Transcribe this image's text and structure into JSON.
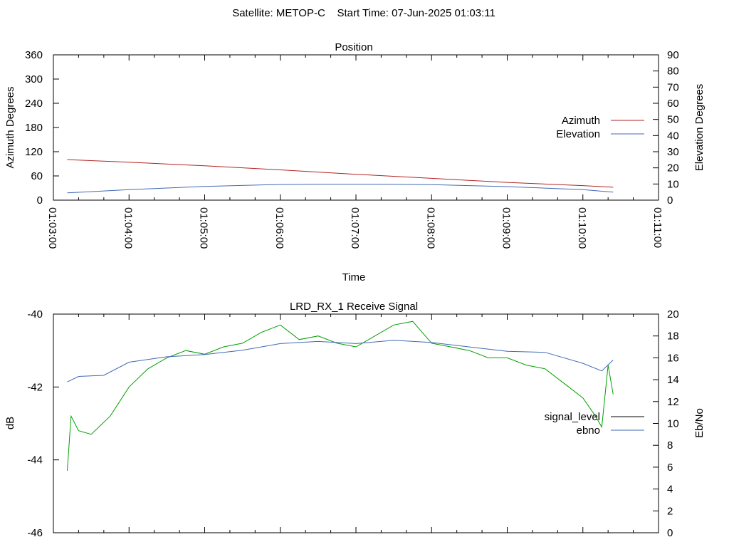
{
  "title": "Satellite: METOP-C    Start Time: 07-Jun-2025 01:03:11",
  "chart_data": [
    {
      "type": "line",
      "title": "Position",
      "xlabel": "Time",
      "ylabel": "Azimuth Degrees",
      "y2label": "Elevation Degrees",
      "ylim": [
        0,
        360
      ],
      "y2lim": [
        0,
        90
      ],
      "yticks": [
        "0",
        "60",
        "120",
        "180",
        "240",
        "300",
        "360"
      ],
      "y2ticks": [
        "0",
        "10",
        "20",
        "30",
        "40",
        "50",
        "60",
        "70",
        "80",
        "90"
      ],
      "xticks": [
        "01:03:00",
        "01:04:00",
        "01:05:00",
        "01:06:00",
        "01:07:00",
        "01:08:00",
        "01:09:00",
        "01:10:00",
        "01:11:00"
      ],
      "legend_position": "right",
      "series": [
        {
          "name": "Azimuth",
          "axis": "y",
          "color": "#b22222",
          "x": [
            "01:03:11",
            "01:04:00",
            "01:05:00",
            "01:06:00",
            "01:07:00",
            "01:08:00",
            "01:09:00",
            "01:10:00",
            "01:10:24"
          ],
          "values": [
            100.5,
            94,
            85,
            75,
            64,
            54,
            44,
            36,
            32
          ]
        },
        {
          "name": "Elevation",
          "axis": "y2",
          "color": "#4169b4",
          "x": [
            "01:03:11",
            "01:04:00",
            "01:05:00",
            "01:06:00",
            "01:06:30",
            "01:07:00",
            "01:07:30",
            "01:08:00",
            "01:09:00",
            "01:10:00",
            "01:10:24"
          ],
          "values": [
            4.5,
            6.5,
            8.5,
            9.7,
            9.9,
            9.9,
            9.8,
            9.6,
            8.4,
            6.5,
            5
          ]
        }
      ]
    },
    {
      "type": "line",
      "title": "LRD_RX_1 Receive Signal",
      "ylabel": "dB",
      "y2label": "Eb/No",
      "ylim": [
        -46,
        -40
      ],
      "y2lim": [
        0,
        20
      ],
      "yticks": [
        "-46",
        "-44",
        "-42",
        "-40"
      ],
      "y2ticks": [
        "0",
        "2",
        "4",
        "6",
        "8",
        "10",
        "12",
        "14",
        "16",
        "18",
        "20"
      ],
      "legend_position": "right",
      "series": [
        {
          "name": "signal_level",
          "axis": "y",
          "color": "#00a000",
          "x": [
            "01:03:11",
            "01:03:14",
            "01:03:20",
            "01:03:30",
            "01:03:45",
            "01:04:00",
            "01:04:15",
            "01:04:30",
            "01:04:45",
            "01:05:00",
            "01:05:15",
            "01:05:30",
            "01:05:45",
            "01:06:00",
            "01:06:15",
            "01:06:30",
            "01:06:45",
            "01:07:00",
            "01:07:15",
            "01:07:30",
            "01:07:45",
            "01:08:00",
            "01:08:15",
            "01:08:30",
            "01:08:45",
            "01:09:00",
            "01:09:15",
            "01:09:30",
            "01:09:45",
            "01:10:00",
            "01:10:10",
            "01:10:15",
            "01:10:20",
            "01:10:24"
          ],
          "values": [
            -44.3,
            -42.8,
            -43.2,
            -43.3,
            -42.8,
            -42.0,
            -41.5,
            -41.2,
            -41.0,
            -41.1,
            -40.9,
            -40.8,
            -40.5,
            -40.3,
            -40.7,
            -40.6,
            -40.8,
            -40.9,
            -40.6,
            -40.3,
            -40.2,
            -40.8,
            -40.9,
            -41.0,
            -41.2,
            -41.2,
            -41.4,
            -41.5,
            -41.9,
            -42.3,
            -42.8,
            -43.1,
            -41.4,
            -42.2
          ]
        },
        {
          "name": "ebno",
          "axis": "y2",
          "color": "#4169b4",
          "x": [
            "01:03:11",
            "01:03:20",
            "01:03:40",
            "01:04:00",
            "01:04:30",
            "01:05:00",
            "01:05:30",
            "01:06:00",
            "01:06:30",
            "01:07:00",
            "01:07:30",
            "01:08:00",
            "01:08:30",
            "01:09:00",
            "01:09:30",
            "01:10:00",
            "01:10:15",
            "01:10:24"
          ],
          "values": [
            13.8,
            14.3,
            14.4,
            15.6,
            16.1,
            16.3,
            16.7,
            17.3,
            17.5,
            17.3,
            17.6,
            17.4,
            17.0,
            16.6,
            16.5,
            15.5,
            14.8,
            15.8
          ]
        }
      ]
    }
  ]
}
